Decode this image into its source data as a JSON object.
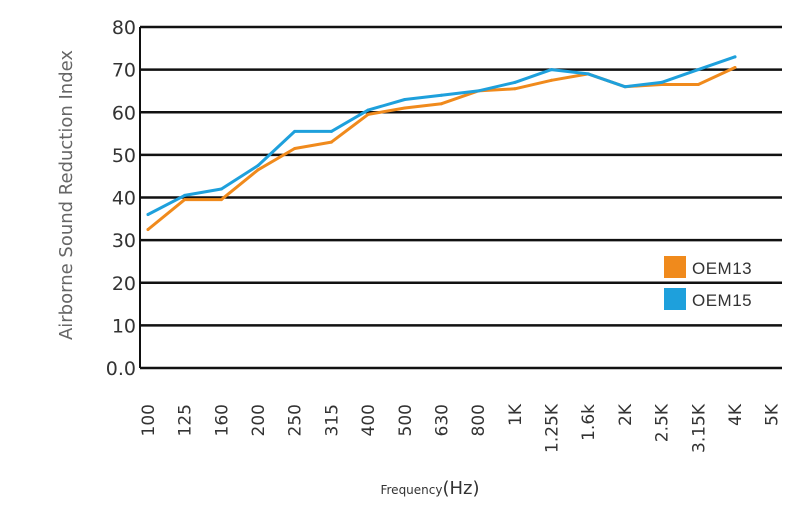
{
  "chart_data": {
    "type": "line",
    "title": "",
    "ylabel": "Airborne Sound Reduction Index",
    "xlabel_main": "Frequency",
    "xlabel_unit": "(Hz)",
    "x": [
      "100",
      "125",
      "160",
      "200",
      "250",
      "315",
      "400",
      "500",
      "630",
      "800",
      "1K",
      "1.25K",
      "1.6k",
      "2K",
      "2.5K",
      "3.15K",
      "4K",
      "5K"
    ],
    "y_tick_labels": [
      "0.0",
      "10",
      "20",
      "30",
      "40",
      "50",
      "60",
      "70",
      "80"
    ],
    "y_tick_values": [
      0,
      10,
      20,
      30,
      40,
      50,
      60,
      70,
      80
    ],
    "ylim": [
      0,
      80
    ],
    "grid": true,
    "legend_position": "right",
    "series": [
      {
        "name": "OEM13",
        "color": "#F08A1C",
        "values": [
          32.5,
          39.5,
          39.5,
          46.5,
          51.5,
          53,
          59.5,
          61,
          62,
          65,
          65.5,
          67.5,
          69,
          66,
          66.5,
          66.5,
          70.5,
          null
        ]
      },
      {
        "name": "OEM15",
        "color": "#1EA0DC",
        "values": [
          36,
          40.5,
          42,
          47.5,
          55.5,
          55.5,
          60.5,
          63,
          64,
          65,
          67,
          70,
          69,
          66,
          67,
          70,
          73,
          null
        ]
      }
    ]
  }
}
